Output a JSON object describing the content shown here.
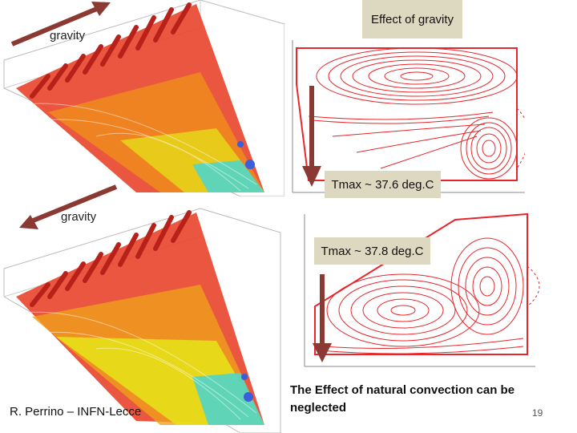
{
  "slide": {
    "title_box": "Effect of gravity",
    "gravity_top": "gravity",
    "gravity_mid": "gravity",
    "tmax_top": "Tmax ~ 37.6 deg.C",
    "tmax_bottom": "Tmax ~ 37.8 deg.C",
    "author": "R. Perrino – INFN-Lecce",
    "conclusion": "The Effect of natural convection can be neglected",
    "page_number": "19"
  },
  "colors": {
    "arrow": "#8b3a33",
    "box_bg": "#ddd8c0",
    "streamline": "#e8262b"
  }
}
